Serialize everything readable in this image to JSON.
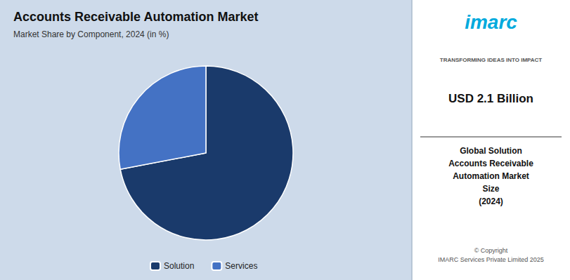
{
  "chart_data": {
    "type": "pie",
    "title": "Accounts Receivable Automation Market",
    "subtitle": "Market Share by Component, 2024 (in %)",
    "categories": [
      "Solution",
      "Services"
    ],
    "values": [
      72,
      28
    ],
    "colors": [
      "#1a3a6b",
      "#4472c4"
    ],
    "legend": "bottom",
    "annotations": [
      "imarc",
      "TRANSFORMING IDEAS INTO IMPACT",
      "USD 2.1 Billion",
      "Global Solution\nAccounts Receivable\nAutomation Market\nSize\n(2024)",
      "© Copyright\nIMARC Services Private Limited 2025"
    ]
  }
}
